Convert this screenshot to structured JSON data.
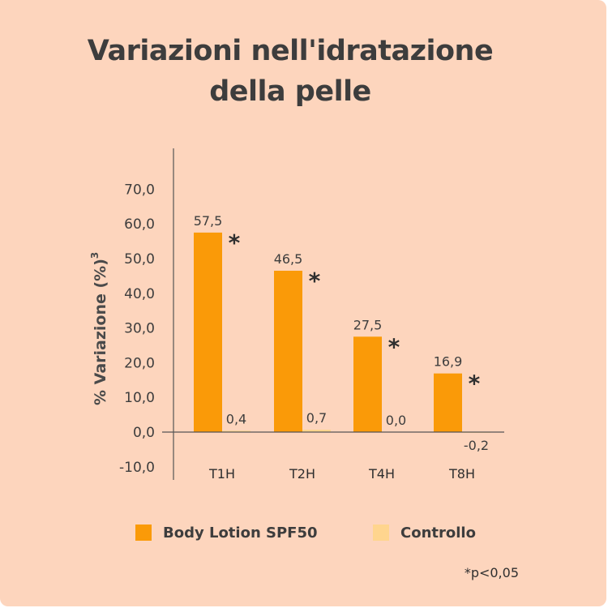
{
  "colors": {
    "background": "#fdd5bd",
    "series_primary": "#fa9a08",
    "series_control": "#ffd58e",
    "text": "#3d3d3d",
    "axis": "#555555"
  },
  "footnote": "*p<0,05",
  "chart_data": {
    "type": "bar",
    "title": [
      "Variazioni nell'idratazione",
      "della pelle"
    ],
    "ylabel": "% Variazione (%)",
    "ylabel_superscript": "3",
    "xlabel": "",
    "categories": [
      "T1H",
      "T2H",
      "T4H",
      "T8H"
    ],
    "ylim": [
      -10,
      70
    ],
    "yticks": [
      -10,
      0,
      10,
      20,
      30,
      40,
      50,
      60,
      70
    ],
    "ytick_labels": [
      "-10,0",
      "0,0",
      "10,0",
      "20,0",
      "30,0",
      "40,0",
      "50,0",
      "60,0",
      "70,0"
    ],
    "grid": false,
    "legend_position": "bottom",
    "series": [
      {
        "name": "Body Lotion SPF50",
        "color": "#fa9a08",
        "values": [
          57.5,
          46.5,
          27.5,
          16.9
        ],
        "labels": [
          "57,5",
          "46,5",
          "27,5",
          "16,9"
        ],
        "significance": [
          "*",
          "*",
          "*",
          "*"
        ]
      },
      {
        "name": "Controllo",
        "color": "#ffd58e",
        "values": [
          0.4,
          0.7,
          0.0,
          -0.2
        ],
        "labels": [
          "0,4",
          "0,7",
          "0,0",
          "-0,2"
        ]
      }
    ]
  }
}
